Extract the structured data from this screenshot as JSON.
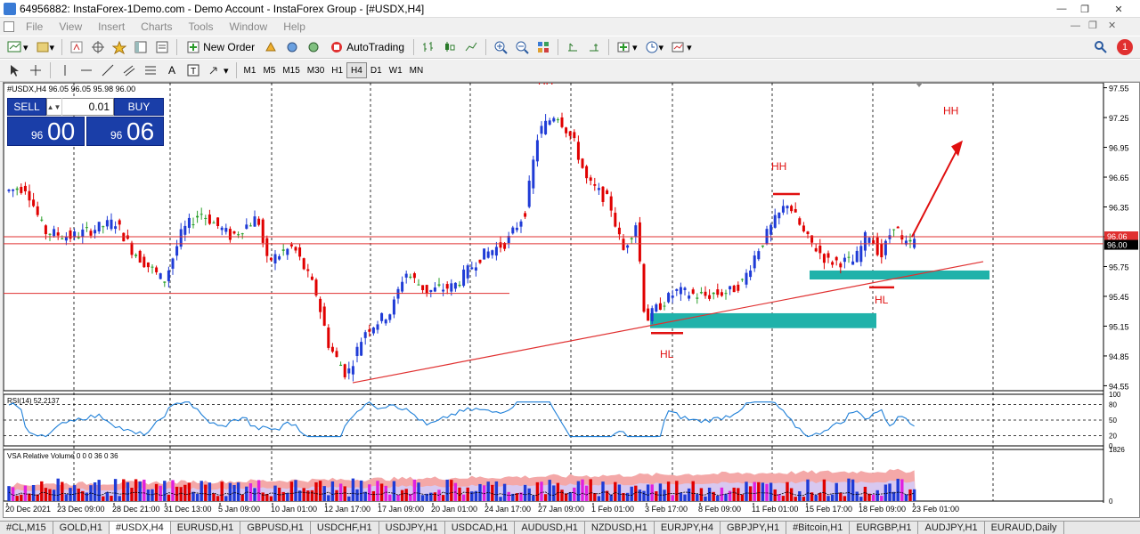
{
  "window": {
    "title": "64956882: InstaForex-1Demo.com - Demo Account - InstaForex Group - [#USDX,H4]"
  },
  "menu": [
    "File",
    "View",
    "Insert",
    "Charts",
    "Tools",
    "Window",
    "Help"
  ],
  "toolbar": {
    "new_order_label": "New Order",
    "autotrading_label": "AutoTrading",
    "notification_count": "1"
  },
  "timeframes": [
    "M1",
    "M5",
    "M15",
    "M30",
    "H1",
    "H4",
    "D1",
    "W1",
    "MN"
  ],
  "active_timeframe": "H4",
  "chart": {
    "header": "#USDX,H4  96.05 96.05 95.98 96.00",
    "current_price_label": "96.00",
    "current_price_label2": "96.06",
    "price_ticks": [
      "97.55",
      "97.25",
      "96.95",
      "96.65",
      "96.35",
      "96.05",
      "95.75",
      "95.45",
      "95.15",
      "94.85",
      "94.55"
    ],
    "time_ticks": [
      "20 Dec 2021",
      "23 Dec 09:00",
      "28 Dec 21:00",
      "31 Dec 13:00",
      "5 Jan 09:00",
      "10 Jan 01:00",
      "12 Jan 17:00",
      "17 Jan 09:00",
      "20 Jan 01:00",
      "24 Jan 17:00",
      "27 Jan 09:00",
      "1 Feb 01:00",
      "3 Feb 17:00",
      "8 Feb 09:00",
      "11 Feb 01:00",
      "15 Feb 17:00",
      "18 Feb 09:00",
      "23 Feb 01:00"
    ],
    "annotations": {
      "hh1": "HH",
      "hh2": "HH",
      "hh3": "HH",
      "hl1": "HL",
      "hl2": "HL"
    },
    "colors": {
      "bull": "#1f3bd6",
      "bear": "#e00000",
      "doji": "#2aa02a",
      "zone": "#20b2aa",
      "annotation": "#e01010",
      "rsi": "#1e7fd8"
    }
  },
  "rsi": {
    "label": "RSI(14) 52.2137",
    "ticks": [
      "100",
      "80",
      "50",
      "20",
      "0"
    ]
  },
  "volume": {
    "label": "VSA Relative Volume 0 0 0 36 0 36",
    "ticks": [
      "1826",
      "0"
    ]
  },
  "trade_panel": {
    "sell_label": "SELL",
    "buy_label": "BUY",
    "lot": "0.01",
    "bid_small": "96",
    "bid_big": "00",
    "ask_small": "96",
    "ask_big": "06"
  },
  "tabs": [
    "#CL,M15",
    "GOLD,H1",
    "#USDX,H4",
    "EURUSD,H1",
    "GBPUSD,H1",
    "USDCHF,H1",
    "USDJPY,H1",
    "USDCAD,H1",
    "AUDUSD,H1",
    "NZDUSD,H1",
    "EURJPY,H4",
    "GBPJPY,H1",
    "#Bitcoin,H1",
    "EURGBP,H1",
    "AUDJPY,H1",
    "EURAUD,Daily"
  ],
  "active_tab": "#USDX,H4"
}
